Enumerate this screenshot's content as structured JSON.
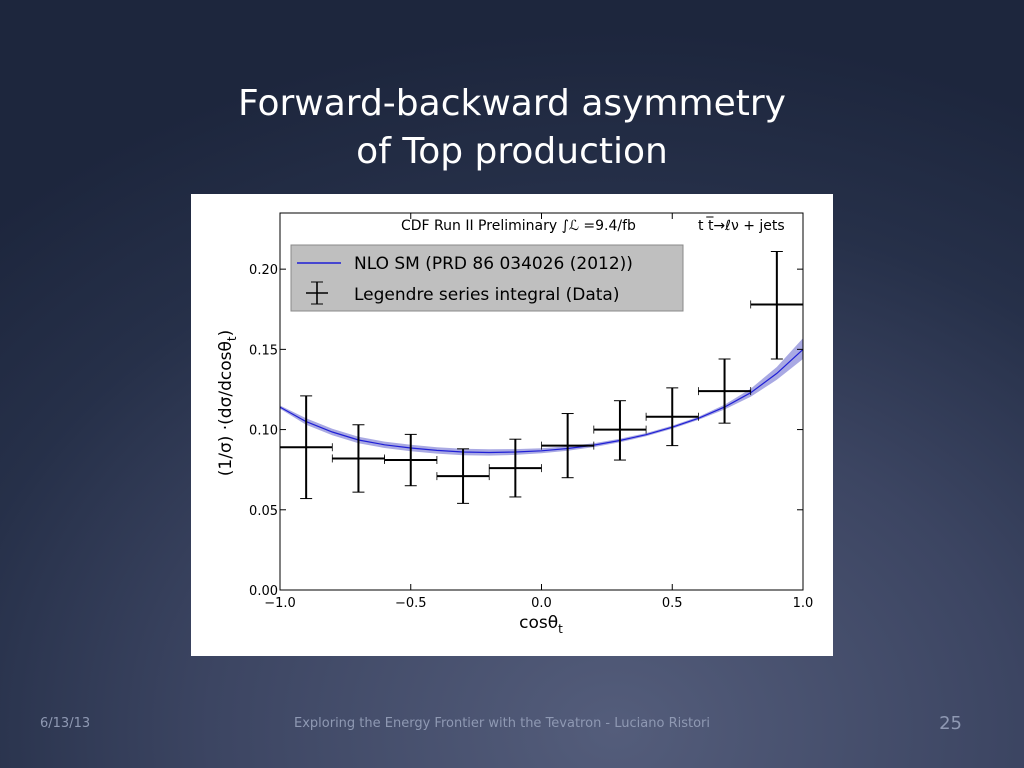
{
  "slide": {
    "title_line1": "Forward-backward asymmetry",
    "title_line2": "of Top production",
    "footer_date": "6/13/13",
    "footer_text": "Exploring the Energy Frontier with the Tevatron - Luciano Ristori",
    "page_number": "25"
  },
  "chart_data": {
    "type": "scatter",
    "annotation": "CDF Run II Preliminary ∫ℒ =9.4/fb",
    "channel_label": "t t̅→ℓν + jets",
    "xlabel_main": "cosθ",
    "xlabel_sub": "t",
    "ylabel_main": "(1/σ) ·(dσ/dcosθ",
    "ylabel_sub": "t",
    "ylabel_close": ")",
    "xlim": [
      -1.0,
      1.0
    ],
    "ylim": [
      0.0,
      0.235
    ],
    "xticks": [
      -1.0,
      -0.5,
      0.0,
      0.5,
      1.0
    ],
    "xtick_labels": [
      "−1.0",
      "−0.5",
      "0.0",
      "0.5",
      "1.0"
    ],
    "yticks": [
      0.0,
      0.05,
      0.1,
      0.15,
      0.2
    ],
    "ytick_labels": [
      "0.00",
      "0.05",
      "0.10",
      "0.15",
      "0.20"
    ],
    "grid": false,
    "legend_position": "top-left",
    "colors": {
      "theory": "#1f1fd6",
      "band": "#8c8cd9",
      "data": "#000000"
    },
    "series": [
      {
        "name": "NLO SM (PRD 86 034026 (2012))",
        "kind": "line_with_band",
        "x": [
          -1.0,
          -0.9,
          -0.8,
          -0.7,
          -0.6,
          -0.5,
          -0.4,
          -0.3,
          -0.2,
          -0.1,
          0.0,
          0.1,
          0.2,
          0.3,
          0.4,
          0.5,
          0.6,
          0.7,
          0.8,
          0.9,
          1.0
        ],
        "y": [
          0.114,
          0.105,
          0.0985,
          0.0935,
          0.0905,
          0.0885,
          0.087,
          0.086,
          0.0857,
          0.086,
          0.0868,
          0.0882,
          0.0903,
          0.0932,
          0.0968,
          0.1015,
          0.107,
          0.114,
          0.123,
          0.135,
          0.15
        ],
        "band_low": [
          0.113,
          0.103,
          0.0965,
          0.0915,
          0.0885,
          0.0865,
          0.085,
          0.084,
          0.0838,
          0.0842,
          0.0852,
          0.0868,
          0.0891,
          0.0921,
          0.0958,
          0.1005,
          0.106,
          0.1125,
          0.1205,
          0.131,
          0.144
        ],
        "band_high": [
          0.115,
          0.107,
          0.1005,
          0.0955,
          0.0925,
          0.0905,
          0.089,
          0.088,
          0.0877,
          0.0878,
          0.0884,
          0.0896,
          0.0915,
          0.0943,
          0.0978,
          0.1025,
          0.108,
          0.1155,
          0.1255,
          0.139,
          0.157
        ]
      },
      {
        "name": "Legendre series integral (Data)",
        "kind": "errorbar",
        "x": [
          -0.9,
          -0.7,
          -0.5,
          -0.3,
          -0.1,
          0.1,
          0.3,
          0.5,
          0.7,
          0.9
        ],
        "xerr": [
          0.1,
          0.1,
          0.1,
          0.1,
          0.1,
          0.1,
          0.1,
          0.1,
          0.1,
          0.1
        ],
        "y": [
          0.089,
          0.082,
          0.081,
          0.071,
          0.076,
          0.09,
          0.1,
          0.108,
          0.124,
          0.178
        ],
        "yerr_low": [
          0.032,
          0.021,
          0.016,
          0.017,
          0.018,
          0.02,
          0.019,
          0.018,
          0.02,
          0.034
        ],
        "yerr_high": [
          0.032,
          0.021,
          0.016,
          0.017,
          0.018,
          0.02,
          0.018,
          0.018,
          0.02,
          0.033
        ]
      }
    ]
  }
}
